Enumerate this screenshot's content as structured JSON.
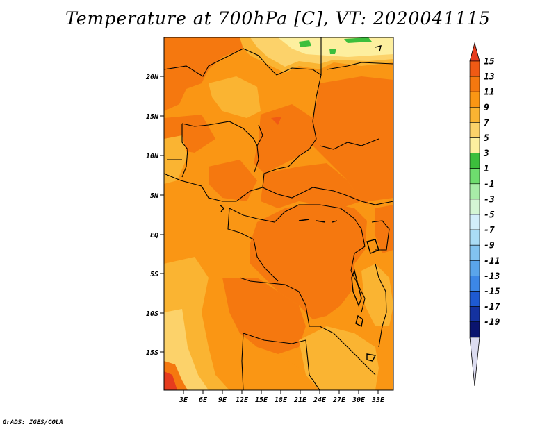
{
  "title": "Temperature at 700hPa [C], VT: 2020041115",
  "credit": "GrADS: IGES/COLA",
  "map": {
    "region": "Central Africa",
    "lat_labels": [
      "20N",
      "15N",
      "10N",
      "5N",
      "EQ",
      "5S",
      "10S",
      "15S"
    ],
    "lon_labels": [
      "3E",
      "6E",
      "9E",
      "12E",
      "15E",
      "18E",
      "21E",
      "24E",
      "27E",
      "30E",
      "33E"
    ]
  },
  "colorbar": {
    "labels": [
      "15",
      "13",
      "11",
      "9",
      "7",
      "5",
      "3",
      "1",
      "-1",
      "-3",
      "-5",
      "-7",
      "-9",
      "-11",
      "-13",
      "-15",
      "-17",
      "-19"
    ],
    "colors": [
      "#e63c1e",
      "#f05a14",
      "#f5780f",
      "#fa9614",
      "#fab432",
      "#fcd26a",
      "#fdef9f",
      "#3cbe3c",
      "#6edc6e",
      "#a8eca8",
      "#d4f6d4",
      "#d2eefa",
      "#aadcf6",
      "#82c3f0",
      "#5aa5eb",
      "#3c87e6",
      "#1e5ad2",
      "#1432a0",
      "#0a146e",
      "#dcdcf0"
    ]
  },
  "colors": {
    "c_lt5": "#fdef9f",
    "c_5_7": "#fcd26a",
    "c_7_9": "#fab432",
    "c_9_11": "#fa9614",
    "c_11_13": "#f5780f",
    "c_13_15": "#f05a14",
    "c_gt15": "#e63c1e",
    "c_green": "#3cbe3c"
  }
}
